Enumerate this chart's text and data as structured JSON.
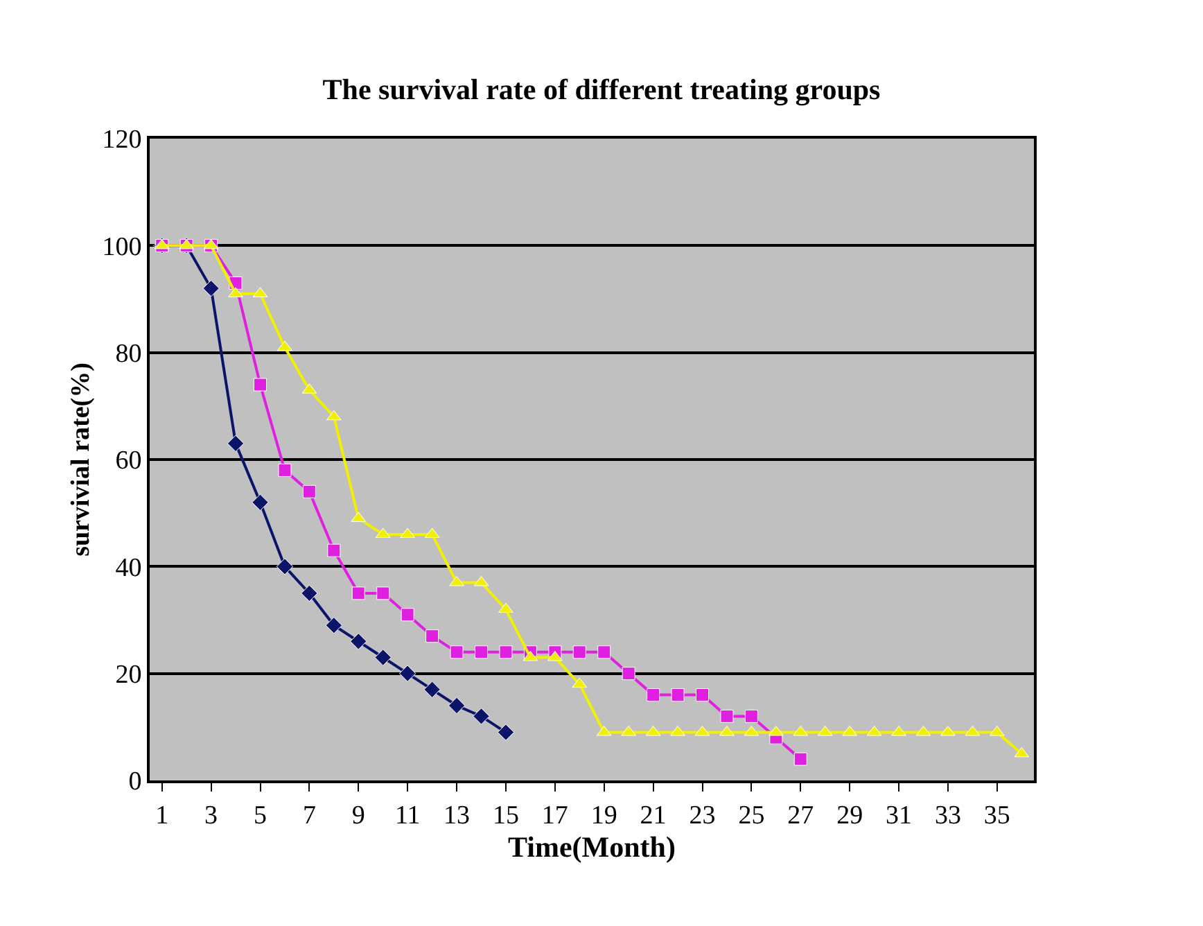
{
  "chart_data": {
    "type": "line",
    "title": "The survival rate of different treating groups",
    "xlabel": "Time(Month)",
    "ylabel": "survivial rate(%)",
    "x": [
      1,
      2,
      3,
      4,
      5,
      6,
      7,
      8,
      9,
      10,
      11,
      12,
      13,
      14,
      15,
      16,
      17,
      18,
      19,
      20,
      21,
      22,
      23,
      24,
      25,
      26,
      27,
      28,
      29,
      30,
      31,
      32,
      33,
      34,
      35,
      36
    ],
    "xlim": [
      0.5,
      36.5
    ],
    "xticks": [
      1,
      3,
      5,
      7,
      9,
      11,
      13,
      15,
      17,
      19,
      21,
      23,
      25,
      27,
      29,
      31,
      33,
      35
    ],
    "ylim": [
      0,
      120
    ],
    "yticks": [
      0,
      20,
      40,
      60,
      80,
      100,
      120
    ],
    "grid": "y",
    "series": [
      {
        "color": "#0a1468",
        "marker": "diamond",
        "values": [
          100,
          100,
          92,
          63,
          52,
          40,
          35,
          29,
          26,
          23,
          20,
          17,
          14,
          12,
          9,
          null,
          null,
          null,
          null,
          null,
          null,
          null,
          null,
          null,
          null,
          null,
          null,
          null,
          null,
          null,
          null,
          null,
          null,
          null,
          null,
          null
        ]
      },
      {
        "color": "#e020e0",
        "marker": "square",
        "values": [
          100,
          100,
          100,
          93,
          74,
          58,
          54,
          43,
          35,
          35,
          31,
          27,
          24,
          24,
          24,
          24,
          24,
          24,
          24,
          20,
          16,
          16,
          16,
          12,
          12,
          8,
          4,
          null,
          null,
          null,
          null,
          null,
          null,
          null,
          null,
          null
        ]
      },
      {
        "color": "#f0f000",
        "marker": "triangle",
        "values": [
          100,
          100,
          100,
          91,
          91,
          81,
          73,
          68,
          49,
          46,
          46,
          46,
          37,
          37,
          32,
          23,
          23,
          18,
          9,
          9,
          9,
          9,
          9,
          9,
          9,
          9,
          9,
          9,
          9,
          9,
          9,
          9,
          9,
          9,
          9,
          5
        ]
      }
    ]
  }
}
